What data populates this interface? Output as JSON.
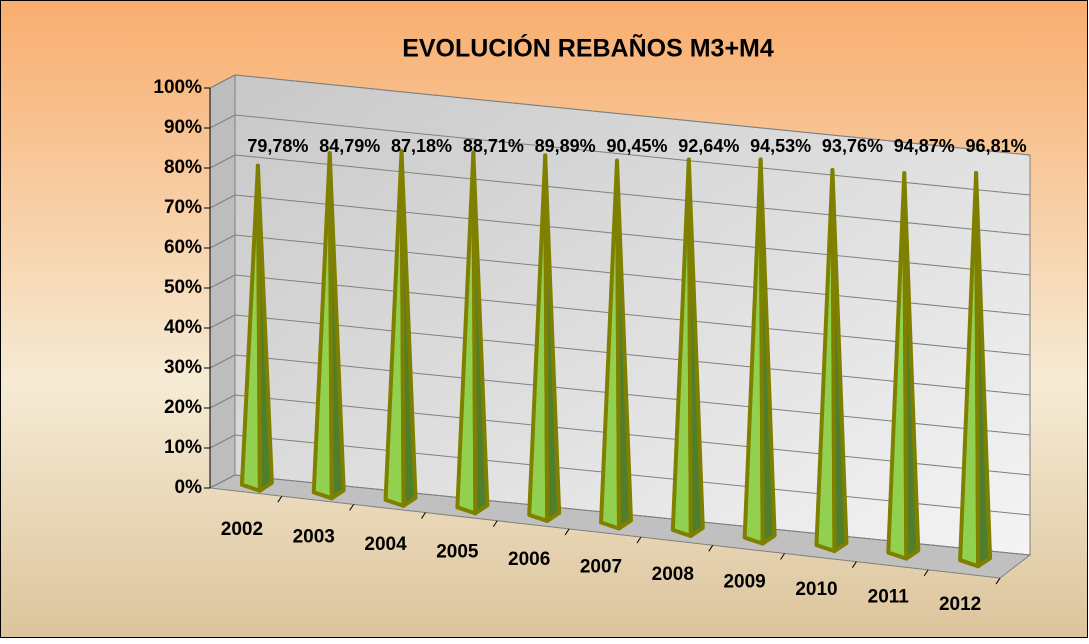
{
  "chart_data": {
    "type": "pyramid",
    "title": "EVOLUCIÓN REBAÑOS M3+M4",
    "categories": [
      "2002",
      "2003",
      "2004",
      "2005",
      "2006",
      "2007",
      "2008",
      "2009",
      "2010",
      "2011",
      "2012"
    ],
    "values": [
      79.78,
      84.79,
      87.18,
      88.71,
      89.89,
      90.45,
      92.64,
      94.53,
      93.76,
      94.87,
      96.81
    ],
    "value_labels": [
      "79,78%",
      "84,79%",
      "87,18%",
      "88,71%",
      "89,89%",
      "90,45%",
      "92,64%",
      "94,53%",
      "93,76%",
      "94,87%",
      "96,81%"
    ],
    "color": "#92d050",
    "ylim": [
      0,
      100
    ],
    "yticks": [
      {
        "value": 0,
        "label": "0%"
      },
      {
        "value": 10,
        "label": "10%"
      },
      {
        "value": 20,
        "label": "20%"
      },
      {
        "value": 30,
        "label": "30%"
      },
      {
        "value": 40,
        "label": "40%"
      },
      {
        "value": 50,
        "label": "50%"
      },
      {
        "value": 60,
        "label": "60%"
      },
      {
        "value": 70,
        "label": "70%"
      },
      {
        "value": 80,
        "label": "80%"
      },
      {
        "value": 90,
        "label": "90%"
      },
      {
        "value": 100,
        "label": "100%"
      }
    ],
    "grid": true
  }
}
